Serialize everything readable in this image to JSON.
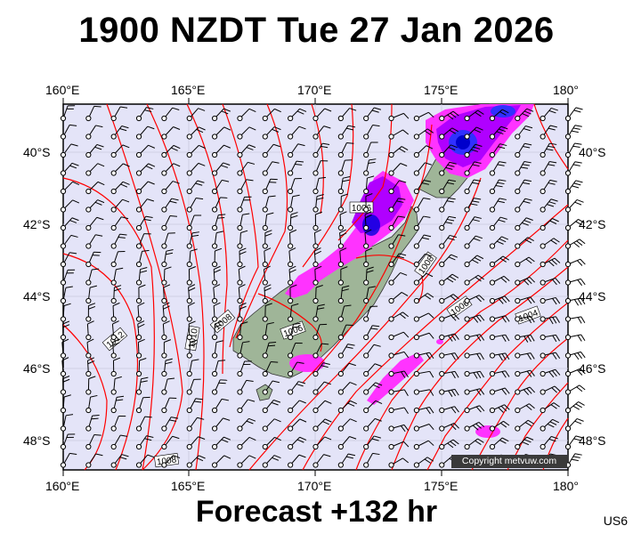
{
  "title": "1900 NZDT Tue 27 Jan 2026",
  "footer": "Forecast +132 hr",
  "model_code": "US6",
  "copyright": "Copyright metvuw.com",
  "lon_labels": [
    "160°E",
    "165°E",
    "170°E",
    "175°E",
    "180°"
  ],
  "lat_labels": [
    "40°S",
    "42°S",
    "44°S",
    "46°S",
    "48°S"
  ],
  "isobar_labels": [
    "1006",
    "1008",
    "1006",
    "1004",
    "1012",
    "1010",
    "1008",
    "1006",
    "1008"
  ],
  "colors": {
    "ocean": "#e4e4f8",
    "isobar": "#ff0000",
    "rain_light": "#ff33ff",
    "rain_mid": "#b000ff",
    "rain_heavy": "#0000dd",
    "land": "#9fb598"
  }
}
